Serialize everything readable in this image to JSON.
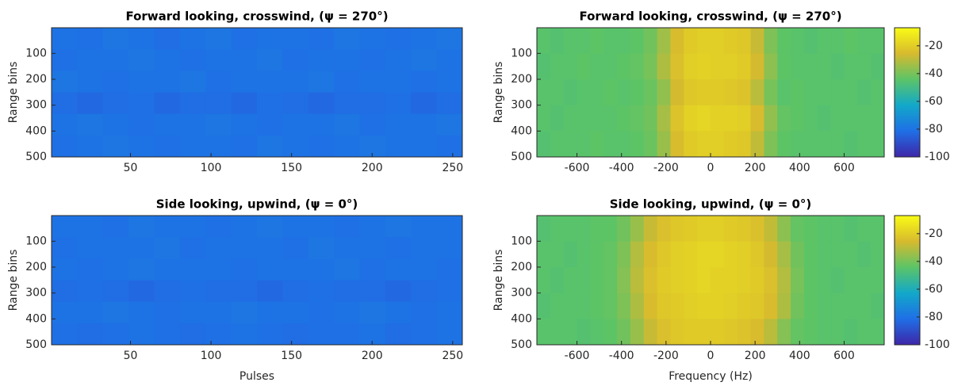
{
  "chart_data": [
    {
      "type": "heatmap",
      "title": "Forward looking, crosswind, (ψ = 270°)",
      "ylabel": "Range bins",
      "xlim": [
        1,
        256
      ],
      "xticks": [
        50,
        100,
        150,
        200,
        250
      ],
      "ylim": [
        1,
        500
      ],
      "yticks": [
        100,
        200,
        300,
        400,
        500
      ],
      "y_reversed": true,
      "clim": [
        -100,
        -7
      ],
      "colormap": [
        "#3e26a8",
        "#1f6fe6",
        "#12a8c9",
        "#5cc467",
        "#d7ba2e",
        "#f9fb15"
      ],
      "z": [
        [
          -80,
          -81,
          -79,
          -80,
          -82,
          -80,
          -79,
          -81,
          -80,
          -80,
          -81,
          -79,
          -80,
          -81,
          -80,
          -79
        ],
        [
          -81,
          -80,
          -80,
          -79,
          -80,
          -81,
          -80,
          -80,
          -79,
          -81,
          -80,
          -80,
          -81,
          -80,
          -79,
          -80
        ],
        [
          -79,
          -80,
          -81,
          -80,
          -80,
          -79,
          -81,
          -80,
          -80,
          -80,
          -79,
          -81,
          -80,
          -80,
          -81,
          -80
        ],
        [
          -82,
          -83,
          -82,
          -81,
          -83,
          -82,
          -82,
          -83,
          -81,
          -82,
          -83,
          -82,
          -82,
          -81,
          -83,
          -82
        ],
        [
          -80,
          -79,
          -80,
          -81,
          -80,
          -80,
          -79,
          -80,
          -81,
          -80,
          -80,
          -79,
          -81,
          -80,
          -80,
          -79
        ],
        [
          -81,
          -80,
          -79,
          -80,
          -81,
          -80,
          -80,
          -81,
          -79,
          -80,
          -81,
          -80,
          -79,
          -80,
          -80,
          -81
        ]
      ]
    },
    {
      "type": "heatmap",
      "title": "Forward looking, crosswind, (ψ = 270°)",
      "ylabel": "Range bins",
      "xlim": [
        -780,
        780
      ],
      "xticks": [
        -600,
        -400,
        -200,
        0,
        200,
        400,
        600
      ],
      "ylim": [
        1,
        500
      ],
      "yticks": [
        100,
        200,
        300,
        400,
        500
      ],
      "y_reversed": true,
      "clim": [
        -100,
        -7
      ],
      "colormap": [
        "#3e26a8",
        "#1f6fe6",
        "#12a8c9",
        "#5cc467",
        "#d7ba2e",
        "#f9fb15"
      ],
      "colorbar": {
        "yticks": [
          -20,
          -40,
          -60,
          -80,
          -100
        ]
      },
      "z": [
        [
          -45,
          -46,
          -45,
          -45,
          -44,
          -45,
          -45,
          -44,
          -41,
          -34,
          -25,
          -21,
          -20,
          -20,
          -21,
          -22,
          -28,
          -39,
          -44,
          -45,
          -46,
          -45,
          -45,
          -44,
          -45,
          -45
        ],
        [
          -46,
          -45,
          -45,
          -44,
          -45,
          -45,
          -44,
          -43,
          -40,
          -32,
          -24,
          -20,
          -19,
          -20,
          -20,
          -21,
          -26,
          -37,
          -44,
          -45,
          -45,
          -45,
          -46,
          -45,
          -45,
          -46
        ],
        [
          -45,
          -45,
          -46,
          -45,
          -45,
          -44,
          -45,
          -44,
          -42,
          -36,
          -26,
          -22,
          -21,
          -21,
          -22,
          -23,
          -30,
          -40,
          -45,
          -44,
          -45,
          -45,
          -45,
          -45,
          -46,
          -45
        ],
        [
          -45,
          -46,
          -45,
          -45,
          -45,
          -45,
          -44,
          -43,
          -41,
          -33,
          -23,
          -19,
          -18,
          -19,
          -19,
          -20,
          -25,
          -36,
          -43,
          -44,
          -45,
          -46,
          -45,
          -45,
          -45,
          -45
        ],
        [
          -46,
          -45,
          -45,
          -45,
          -44,
          -45,
          -45,
          -44,
          -42,
          -35,
          -25,
          -21,
          -20,
          -20,
          -21,
          -22,
          -29,
          -39,
          -44,
          -45,
          -45,
          -45,
          -45,
          -46,
          -45,
          -45
        ]
      ]
    },
    {
      "type": "heatmap",
      "title": "Side looking, upwind, (ψ = 0°)",
      "xlabel": "Pulses",
      "ylabel": "Range bins",
      "xlim": [
        1,
        256
      ],
      "xticks": [
        50,
        100,
        150,
        200,
        250
      ],
      "ylim": [
        1,
        500
      ],
      "yticks": [
        100,
        200,
        300,
        400,
        500
      ],
      "y_reversed": true,
      "clim": [
        -100,
        -7
      ],
      "colormap": [
        "#3e26a8",
        "#1f6fe6",
        "#12a8c9",
        "#5cc467",
        "#d7ba2e",
        "#f9fb15"
      ],
      "z": [
        [
          -80,
          -80,
          -81,
          -79,
          -80,
          -80,
          -81,
          -80,
          -79,
          -80,
          -80,
          -81,
          -80,
          -79,
          -80,
          -80
        ],
        [
          -81,
          -80,
          -80,
          -80,
          -79,
          -81,
          -80,
          -80,
          -80,
          -81,
          -79,
          -80,
          -80,
          -81,
          -80,
          -80
        ],
        [
          -80,
          -81,
          -80,
          -79,
          -80,
          -80,
          -80,
          -81,
          -80,
          -80,
          -80,
          -79,
          -81,
          -80,
          -80,
          -81
        ],
        [
          -82,
          -81,
          -82,
          -83,
          -82,
          -81,
          -82,
          -82,
          -83,
          -82,
          -81,
          -82,
          -82,
          -83,
          -82,
          -81
        ],
        [
          -80,
          -80,
          -79,
          -80,
          -81,
          -80,
          -80,
          -79,
          -80,
          -80,
          -81,
          -80,
          -79,
          -80,
          -81,
          -80
        ],
        [
          -81,
          -82,
          -81,
          -80,
          -81,
          -82,
          -81,
          -80,
          -81,
          -82,
          -81,
          -81,
          -80,
          -82,
          -81,
          -80
        ]
      ]
    },
    {
      "type": "heatmap",
      "title": "Side looking, upwind, (ψ = 0°)",
      "xlabel": "Frequency (Hz)",
      "ylabel": "Range bins",
      "xlim": [
        -780,
        780
      ],
      "xticks": [
        -600,
        -400,
        -200,
        0,
        200,
        400,
        600
      ],
      "ylim": [
        1,
        500
      ],
      "yticks": [
        100,
        200,
        300,
        400,
        500
      ],
      "y_reversed": true,
      "clim": [
        -100,
        -7
      ],
      "colormap": [
        "#3e26a8",
        "#1f6fe6",
        "#12a8c9",
        "#5cc467",
        "#d7ba2e",
        "#f9fb15"
      ],
      "colorbar": {
        "yticks": [
          -20,
          -40,
          -60,
          -80,
          -100
        ]
      },
      "z": [
        [
          -46,
          -45,
          -45,
          -45,
          -44,
          -44,
          -41,
          -35,
          -28,
          -24,
          -22,
          -21,
          -20,
          -20,
          -21,
          -22,
          -24,
          -29,
          -37,
          -43,
          -44,
          -45,
          -45,
          -46,
          -45,
          -45
        ],
        [
          -45,
          -45,
          -46,
          -45,
          -44,
          -43,
          -39,
          -31,
          -25,
          -22,
          -20,
          -19,
          -18,
          -18,
          -19,
          -20,
          -22,
          -26,
          -33,
          -41,
          -44,
          -45,
          -45,
          -45,
          -46,
          -45
        ],
        [
          -45,
          -46,
          -45,
          -45,
          -44,
          -43,
          -38,
          -30,
          -24,
          -21,
          -20,
          -19,
          -18,
          -19,
          -19,
          -20,
          -21,
          -24,
          -31,
          -40,
          -44,
          -45,
          -46,
          -45,
          -45,
          -45
        ],
        [
          -46,
          -45,
          -45,
          -45,
          -44,
          -43,
          -39,
          -32,
          -25,
          -22,
          -21,
          -20,
          -19,
          -19,
          -20,
          -21,
          -22,
          -25,
          -32,
          -41,
          -44,
          -45,
          -45,
          -45,
          -45,
          -46
        ],
        [
          -45,
          -45,
          -45,
          -46,
          -45,
          -44,
          -41,
          -35,
          -28,
          -24,
          -22,
          -21,
          -21,
          -21,
          -22,
          -23,
          -25,
          -30,
          -38,
          -43,
          -44,
          -45,
          -45,
          -46,
          -45,
          -45
        ]
      ]
    }
  ]
}
